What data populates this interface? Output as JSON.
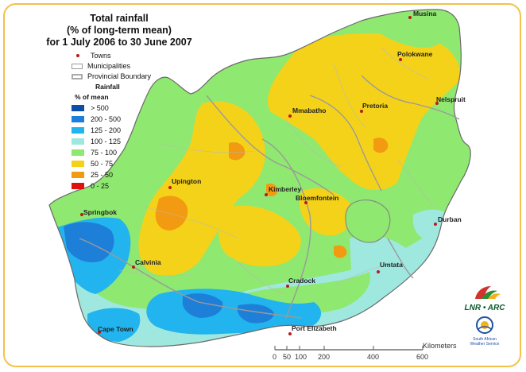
{
  "title": {
    "line1": "Total rainfall",
    "line2": "(% of long-term mean)",
    "line3": "for 1 July 2006 to 30 June 2007"
  },
  "legend": {
    "towns": "Towns",
    "municipalities": "Municipalities",
    "provincial_boundary": "Provincial Boundary",
    "rainfall_heading": "Rainfall",
    "percent_heading": "% of mean",
    "classes": [
      {
        "label": "> 500",
        "color": "#0b4fa8"
      },
      {
        "label": "200 - 500",
        "color": "#1e7fd8"
      },
      {
        "label": "125 - 200",
        "color": "#22b4ee"
      },
      {
        "label": "100 - 125",
        "color": "#9fe8df"
      },
      {
        "label": "75 - 100",
        "color": "#8fe870"
      },
      {
        "label": "50 - 75",
        "color": "#f5d21a"
      },
      {
        "label": "25 - 50",
        "color": "#f29a12"
      },
      {
        "label": "0 - 25",
        "color": "#e01010"
      }
    ],
    "town_dot_color": "#b71c1c"
  },
  "towns": [
    {
      "name": "Musina"
    },
    {
      "name": "Polokwane"
    },
    {
      "name": "Nelspruit"
    },
    {
      "name": "Pretoria"
    },
    {
      "name": "Mmabatho"
    },
    {
      "name": "Upington"
    },
    {
      "name": "Kimberley"
    },
    {
      "name": "Bloemfontein"
    },
    {
      "name": "Springbok"
    },
    {
      "name": "Durban"
    },
    {
      "name": "Calvinia"
    },
    {
      "name": "Umtata"
    },
    {
      "name": "Cradock"
    },
    {
      "name": "Cape Town"
    },
    {
      "name": "Port Elizabeth"
    }
  ],
  "scale": {
    "unit_label": "Kilometers",
    "ticks": [
      "0",
      "100",
      "200",
      "400",
      "600"
    ],
    "intermediate_tick": "50"
  },
  "logo": {
    "name": "LNR • ARC",
    "subtitle_line1": "South African",
    "subtitle_line2": "Weather Service"
  }
}
